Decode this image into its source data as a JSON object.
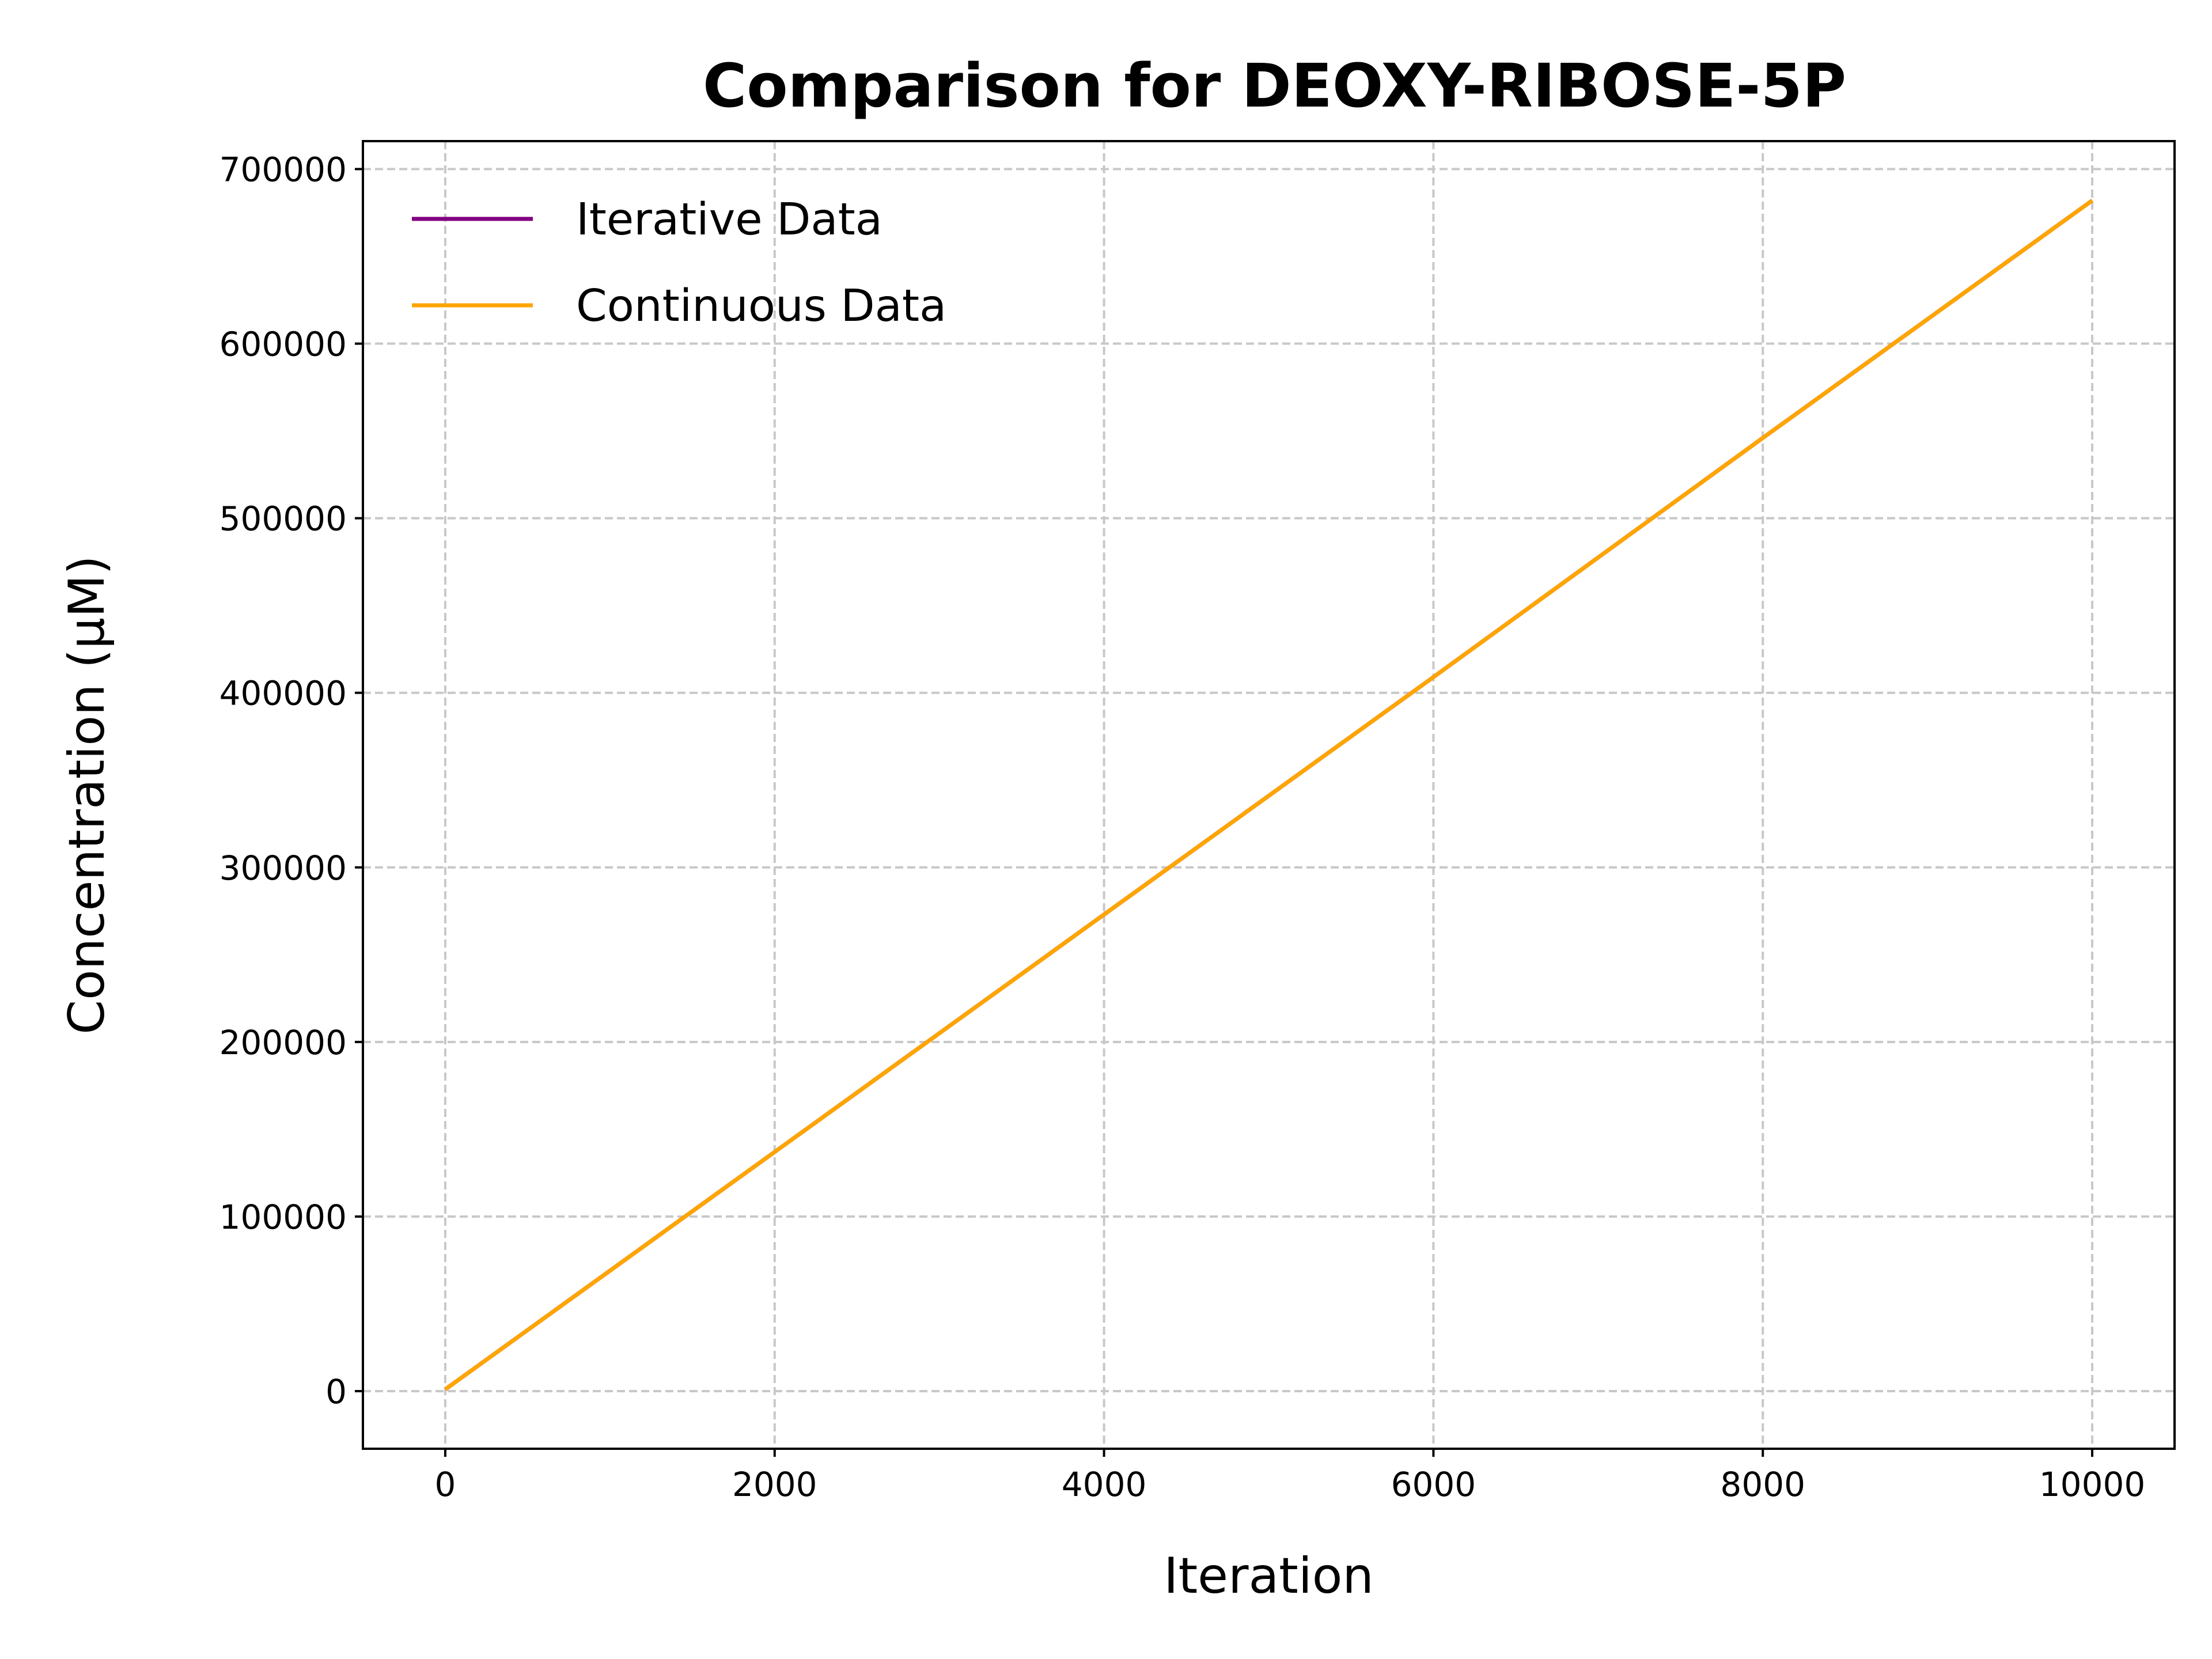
{
  "chart_data": {
    "type": "line",
    "title": "Comparison for DEOXY-RIBOSE-5P",
    "xlabel": "Iteration",
    "ylabel": "Concentration (μM)",
    "xlim": [
      -500,
      10500
    ],
    "ylim": [
      -33000,
      716000
    ],
    "xticks": [
      0,
      2000,
      4000,
      6000,
      8000,
      10000
    ],
    "xtick_labels": [
      "0",
      "2000",
      "4000",
      "6000",
      "8000",
      "10000"
    ],
    "yticks": [
      0,
      100000,
      200000,
      300000,
      400000,
      500000,
      600000,
      700000
    ],
    "ytick_labels": [
      "0",
      "100000",
      "200000",
      "300000",
      "400000",
      "500000",
      "600000",
      "700000"
    ],
    "grid": true,
    "legend": "top-left",
    "series": [
      {
        "name": "Iterative Data",
        "color": "#800080",
        "x": [
          0,
          2000,
          4000,
          6000,
          8000,
          10000
        ],
        "y": [
          1000,
          137000,
          273000,
          409000,
          546000,
          682000
        ]
      },
      {
        "name": "Continuous Data",
        "color": "#FFA500",
        "x": [
          0,
          2000,
          4000,
          6000,
          8000,
          10000
        ],
        "y": [
          1000,
          137000,
          273000,
          409000,
          546000,
          682000
        ]
      }
    ]
  }
}
